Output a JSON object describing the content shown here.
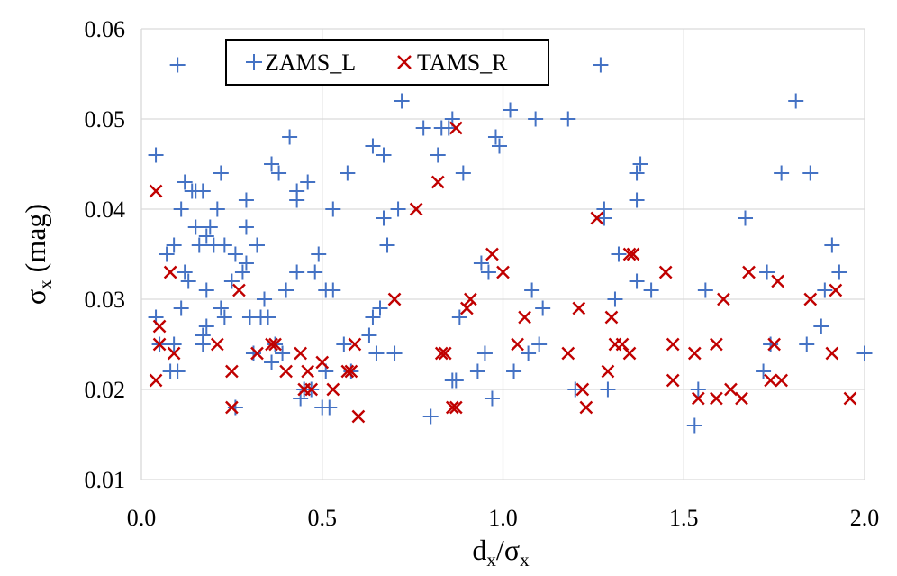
{
  "chart_data": {
    "type": "scatter",
    "title": "",
    "xlabel": "d_x/σ_x",
    "ylabel": "σ_x (mag)",
    "xlim": [
      0.0,
      2.0
    ],
    "ylim": [
      0.01,
      0.06
    ],
    "grid": true,
    "legend_position": "top-left",
    "x_ticks": [
      "0.0",
      "0.5",
      "1.0",
      "1.5",
      "2.0"
    ],
    "y_ticks": [
      "0.01",
      "0.02",
      "0.03",
      "0.04",
      "0.05",
      "0.06"
    ],
    "x_label": {
      "main": "d",
      "sub": "x",
      "sep": "/σ",
      "sub2": "x"
    },
    "y_label": {
      "main": "σ",
      "sub": "x",
      "rest": " (mag)"
    },
    "series": [
      {
        "name": "ZAMS_L",
        "marker": "plus",
        "color": "#4472C4",
        "points": [
          [
            0.04,
            0.046
          ],
          [
            0.04,
            0.028
          ],
          [
            0.05,
            0.025
          ],
          [
            0.07,
            0.035
          ],
          [
            0.08,
            0.022
          ],
          [
            0.09,
            0.036
          ],
          [
            0.09,
            0.025
          ],
          [
            0.1,
            0.022
          ],
          [
            0.1,
            0.056
          ],
          [
            0.11,
            0.04
          ],
          [
            0.11,
            0.029
          ],
          [
            0.12,
            0.043
          ],
          [
            0.12,
            0.033
          ],
          [
            0.13,
            0.032
          ],
          [
            0.14,
            0.042
          ],
          [
            0.15,
            0.038
          ],
          [
            0.15,
            0.042
          ],
          [
            0.16,
            0.036
          ],
          [
            0.17,
            0.042
          ],
          [
            0.17,
            0.026
          ],
          [
            0.17,
            0.025
          ],
          [
            0.18,
            0.031
          ],
          [
            0.18,
            0.027
          ],
          [
            0.18,
            0.037
          ],
          [
            0.19,
            0.038
          ],
          [
            0.2,
            0.036
          ],
          [
            0.21,
            0.04
          ],
          [
            0.22,
            0.044
          ],
          [
            0.22,
            0.029
          ],
          [
            0.23,
            0.028
          ],
          [
            0.23,
            0.036
          ],
          [
            0.25,
            0.032
          ],
          [
            0.26,
            0.018
          ],
          [
            0.26,
            0.035
          ],
          [
            0.28,
            0.033
          ],
          [
            0.29,
            0.041
          ],
          [
            0.29,
            0.038
          ],
          [
            0.29,
            0.034
          ],
          [
            0.3,
            0.028
          ],
          [
            0.31,
            0.024
          ],
          [
            0.32,
            0.036
          ],
          [
            0.33,
            0.028
          ],
          [
            0.34,
            0.03
          ],
          [
            0.35,
            0.028
          ],
          [
            0.36,
            0.023
          ],
          [
            0.36,
            0.045
          ],
          [
            0.37,
            0.025
          ],
          [
            0.38,
            0.044
          ],
          [
            0.39,
            0.024
          ],
          [
            0.4,
            0.031
          ],
          [
            0.41,
            0.048
          ],
          [
            0.43,
            0.041
          ],
          [
            0.43,
            0.033
          ],
          [
            0.43,
            0.042
          ],
          [
            0.44,
            0.019
          ],
          [
            0.45,
            0.02
          ],
          [
            0.46,
            0.043
          ],
          [
            0.47,
            0.02
          ],
          [
            0.48,
            0.033
          ],
          [
            0.49,
            0.035
          ],
          [
            0.5,
            0.018
          ],
          [
            0.51,
            0.031
          ],
          [
            0.51,
            0.022
          ],
          [
            0.52,
            0.018
          ],
          [
            0.53,
            0.031
          ],
          [
            0.53,
            0.04
          ],
          [
            0.56,
            0.025
          ],
          [
            0.57,
            0.044
          ],
          [
            0.58,
            0.022
          ],
          [
            0.63,
            0.026
          ],
          [
            0.64,
            0.028
          ],
          [
            0.64,
            0.047
          ],
          [
            0.65,
            0.024
          ],
          [
            0.66,
            0.029
          ],
          [
            0.67,
            0.039
          ],
          [
            0.67,
            0.046
          ],
          [
            0.68,
            0.036
          ],
          [
            0.7,
            0.024
          ],
          [
            0.71,
            0.04
          ],
          [
            0.72,
            0.052
          ],
          [
            0.78,
            0.049
          ],
          [
            0.8,
            0.017
          ],
          [
            0.82,
            0.046
          ],
          [
            0.83,
            0.049
          ],
          [
            0.85,
            0.049
          ],
          [
            0.86,
            0.021
          ],
          [
            0.86,
            0.05
          ],
          [
            0.87,
            0.021
          ],
          [
            0.88,
            0.028
          ],
          [
            0.89,
            0.044
          ],
          [
            0.93,
            0.022
          ],
          [
            0.94,
            0.034
          ],
          [
            0.95,
            0.024
          ],
          [
            0.96,
            0.033
          ],
          [
            0.97,
            0.019
          ],
          [
            0.98,
            0.048
          ],
          [
            0.99,
            0.047
          ],
          [
            1.02,
            0.051
          ],
          [
            1.03,
            0.022
          ],
          [
            1.07,
            0.024
          ],
          [
            1.08,
            0.031
          ],
          [
            1.09,
            0.05
          ],
          [
            1.1,
            0.025
          ],
          [
            1.11,
            0.029
          ],
          [
            1.18,
            0.05
          ],
          [
            1.2,
            0.02
          ],
          [
            1.27,
            0.056
          ],
          [
            1.28,
            0.04
          ],
          [
            1.28,
            0.039
          ],
          [
            1.29,
            0.02
          ],
          [
            1.31,
            0.03
          ],
          [
            1.32,
            0.035
          ],
          [
            1.37,
            0.032
          ],
          [
            1.37,
            0.041
          ],
          [
            1.37,
            0.044
          ],
          [
            1.38,
            0.045
          ],
          [
            1.41,
            0.031
          ],
          [
            1.53,
            0.016
          ],
          [
            1.54,
            0.02
          ],
          [
            1.56,
            0.031
          ],
          [
            1.67,
            0.039
          ],
          [
            1.72,
            0.022
          ],
          [
            1.73,
            0.033
          ],
          [
            1.74,
            0.025
          ],
          [
            1.77,
            0.044
          ],
          [
            1.81,
            0.052
          ],
          [
            1.84,
            0.025
          ],
          [
            1.85,
            0.044
          ],
          [
            1.88,
            0.027
          ],
          [
            1.89,
            0.031
          ],
          [
            1.91,
            0.036
          ],
          [
            1.93,
            0.033
          ],
          [
            2.0,
            0.024
          ]
        ]
      },
      {
        "name": "TAMS_R",
        "marker": "x",
        "color": "#C00000",
        "points": [
          [
            0.04,
            0.042
          ],
          [
            0.04,
            0.021
          ],
          [
            0.05,
            0.027
          ],
          [
            0.05,
            0.025
          ],
          [
            0.08,
            0.033
          ],
          [
            0.09,
            0.024
          ],
          [
            0.21,
            0.025
          ],
          [
            0.25,
            0.022
          ],
          [
            0.25,
            0.018
          ],
          [
            0.27,
            0.031
          ],
          [
            0.32,
            0.024
          ],
          [
            0.36,
            0.025
          ],
          [
            0.37,
            0.025
          ],
          [
            0.4,
            0.022
          ],
          [
            0.44,
            0.024
          ],
          [
            0.45,
            0.02
          ],
          [
            0.46,
            0.022
          ],
          [
            0.47,
            0.02
          ],
          [
            0.5,
            0.023
          ],
          [
            0.53,
            0.02
          ],
          [
            0.57,
            0.022
          ],
          [
            0.58,
            0.022
          ],
          [
            0.59,
            0.025
          ],
          [
            0.6,
            0.017
          ],
          [
            0.7,
            0.03
          ],
          [
            0.76,
            0.04
          ],
          [
            0.82,
            0.043
          ],
          [
            0.83,
            0.024
          ],
          [
            0.84,
            0.024
          ],
          [
            0.86,
            0.018
          ],
          [
            0.87,
            0.018
          ],
          [
            0.87,
            0.049
          ],
          [
            0.9,
            0.029
          ],
          [
            0.91,
            0.03
          ],
          [
            0.97,
            0.035
          ],
          [
            1.0,
            0.033
          ],
          [
            1.04,
            0.025
          ],
          [
            1.06,
            0.028
          ],
          [
            1.18,
            0.024
          ],
          [
            1.21,
            0.029
          ],
          [
            1.22,
            0.02
          ],
          [
            1.23,
            0.018
          ],
          [
            1.26,
            0.039
          ],
          [
            1.29,
            0.022
          ],
          [
            1.3,
            0.028
          ],
          [
            1.31,
            0.025
          ],
          [
            1.33,
            0.025
          ],
          [
            1.35,
            0.024
          ],
          [
            1.35,
            0.035
          ],
          [
            1.36,
            0.035
          ],
          [
            1.45,
            0.033
          ],
          [
            1.47,
            0.025
          ],
          [
            1.47,
            0.021
          ],
          [
            1.53,
            0.024
          ],
          [
            1.54,
            0.019
          ],
          [
            1.59,
            0.025
          ],
          [
            1.59,
            0.019
          ],
          [
            1.61,
            0.03
          ],
          [
            1.63,
            0.02
          ],
          [
            1.66,
            0.019
          ],
          [
            1.68,
            0.033
          ],
          [
            1.74,
            0.021
          ],
          [
            1.75,
            0.025
          ],
          [
            1.76,
            0.032
          ],
          [
            1.77,
            0.021
          ],
          [
            1.85,
            0.03
          ],
          [
            1.91,
            0.024
          ],
          [
            1.92,
            0.031
          ],
          [
            1.96,
            0.019
          ]
        ]
      }
    ]
  }
}
